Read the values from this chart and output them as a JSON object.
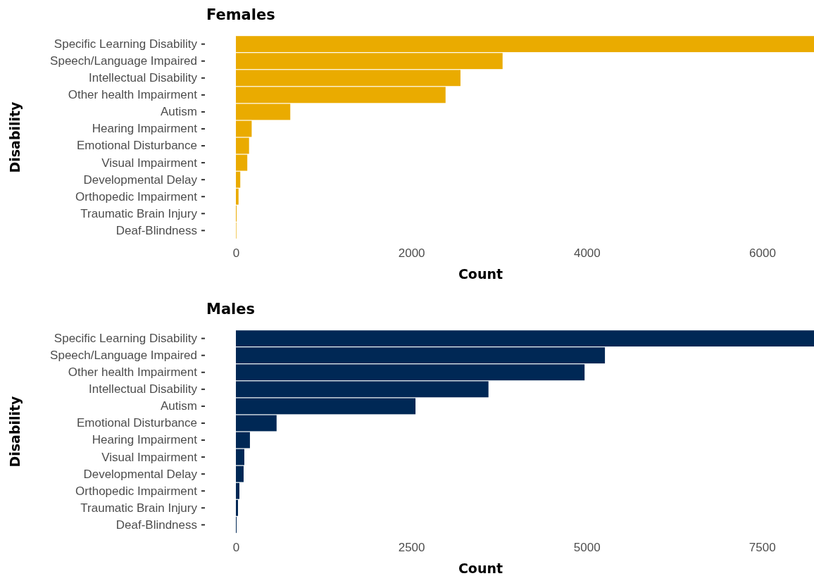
{
  "chart_data": [
    {
      "type": "bar",
      "orientation": "horizontal",
      "title": "Females",
      "xlabel": "Count",
      "ylabel": "Disability",
      "categories": [
        "Specific Learning Disability",
        "Speech/Language Impaired",
        "Intellectual Disability",
        "Other health Impairment",
        "Autism",
        "Hearing Impairment",
        "Emotional Disturbance",
        "Visual Impairment",
        "Developmental Delay",
        "Orthopedic Impairment",
        "Traumatic Brain Injury",
        "Deaf-Blindness"
      ],
      "values": [
        6590,
        3040,
        2560,
        2390,
        620,
        180,
        150,
        130,
        50,
        30,
        8,
        5
      ],
      "color": "#eaab00",
      "xlim": [
        0,
        6590
      ],
      "xticks": [
        0,
        2000,
        4000,
        6000
      ],
      "grid": false
    },
    {
      "type": "bar",
      "orientation": "horizontal",
      "title": "Males",
      "xlabel": "Count",
      "ylabel": "Disability",
      "categories": [
        "Specific Learning Disability",
        "Speech/Language Impaired",
        "Other health Impairment",
        "Intellectual Disability",
        "Autism",
        "Emotional Disturbance",
        "Hearing Impairment",
        "Visual Impairment",
        "Developmental Delay",
        "Orthopedic Impairment",
        "Traumatic Brain Injury",
        "Deaf-Blindness"
      ],
      "values": [
        8240,
        5260,
        4970,
        3600,
        2560,
        580,
        200,
        120,
        110,
        50,
        30,
        10
      ],
      "color": "#002855",
      "xlim": [
        0,
        8240
      ],
      "xticks": [
        0,
        2500,
        5000,
        7500
      ],
      "grid": false
    }
  ]
}
